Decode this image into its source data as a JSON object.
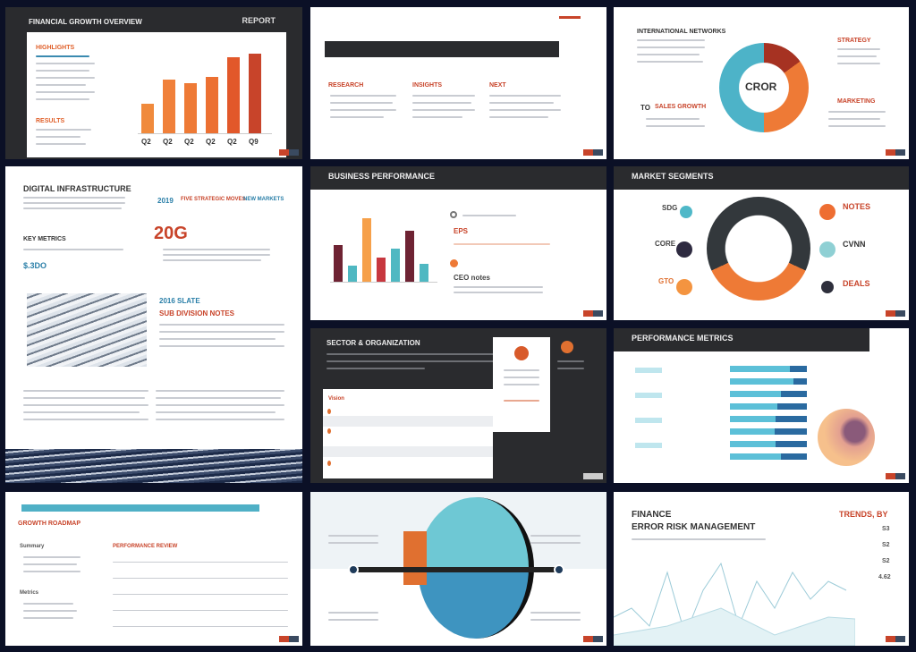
{
  "slides": {
    "s1": {
      "title": "FINANCIAL GROWTH OVERVIEW",
      "corner": "REPORT",
      "heading1": "HIGHLIGHTS",
      "heading2": "RESULTS",
      "chart": {
        "type": "bar",
        "values": [
          30,
          55,
          52,
          58,
          78,
          82
        ],
        "colors": [
          "#f08a3c",
          "#f0803a",
          "#ee7a36",
          "#ec7032",
          "#e2582a",
          "#c8442a"
        ],
        "categories": [
          "Q2",
          "Q2",
          "Q2",
          "Q2",
          "Q2",
          "Q9"
        ]
      }
    },
    "s2": {
      "cols": [
        "RESEARCH",
        "INSIGHTS",
        "NEXT"
      ]
    },
    "s3": {
      "title": "INTERNATIONAL NETWORKS",
      "center": "CROR",
      "label1": "STRATEGY",
      "label2": "MARKETING",
      "label3": "SALES GROWTH",
      "num": "TO",
      "chart": {
        "type": "pie",
        "values": [
          15,
          35,
          50
        ],
        "colors": [
          "#a63222",
          "#ee7a36",
          "#4db3c8"
        ]
      }
    },
    "s4": {
      "title": "DIGITAL INFRASTRUCTURE",
      "sub": "KEY METRICS",
      "stat1": "2019",
      "stat2": "20G",
      "tag": "$.3DO",
      "h1": "FIVE STRATEGIC MOVES",
      "h2": "NEW MARKETS",
      "cap1": "2016 SLATE",
      "cap2": "SUB DIVISION NOTES"
    },
    "s5": {
      "title": "BUSINESS PERFORMANCE",
      "stat1": "EPS",
      "stat2": "CEO notes",
      "chart": {
        "type": "bar",
        "values": [
          58,
          25,
          100,
          38,
          52,
          80,
          28
        ],
        "colors": [
          "#6e2333",
          "#4fb8c2",
          "#f6a04a",
          "#c7373f",
          "#4fb8c2",
          "#6e2333",
          "#4fb8c2"
        ]
      }
    },
    "s6": {
      "title": "MARKET SEGMENTS",
      "l1": "SDG",
      "l2": "CORE",
      "l3": "GTO",
      "r1": "NOTES",
      "r2": "CVNN",
      "r3": "DEALS"
    },
    "s7": {
      "title": "SECTOR & ORGANIZATION",
      "card": "Vision"
    },
    "s8": {
      "title": "PERFORMANCE METRICS",
      "progress": [
        0.78,
        0.83,
        0.66,
        0.62,
        0.59,
        0.58,
        0.59,
        0.66
      ]
    },
    "s9": {
      "title": "GROWTH ROADMAP",
      "list_title": "PERFORMANCE REVIEW",
      "side1": "Summary",
      "side2": "Metrics"
    },
    "s10": {},
    "s11": {
      "title1": "FINANCE",
      "title2": "ERROR RISK MANAGEMENT",
      "side": "TRENDS, BY",
      "vals": [
        "S3",
        "S2",
        "S2",
        "4.62"
      ]
    }
  }
}
